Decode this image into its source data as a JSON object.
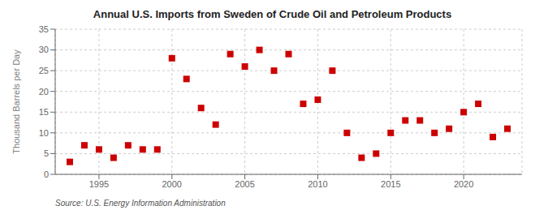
{
  "chart_data": {
    "type": "scatter",
    "title": "Annual U.S. Imports from Sweden of Crude Oil and Petroleum Products",
    "ylabel": "Thousand Barrels per Day",
    "annotation": "Source: U.S. Energy Information Administration",
    "x": [
      1993,
      1994,
      1995,
      1996,
      1997,
      1998,
      1999,
      2000,
      2001,
      2002,
      2003,
      2004,
      2005,
      2006,
      2007,
      2008,
      2009,
      2010,
      2011,
      2012,
      2013,
      2014,
      2015,
      2016,
      2017,
      2018,
      2019,
      2020,
      2021,
      2022,
      2023
    ],
    "values": [
      3,
      7,
      6,
      4,
      7,
      6,
      6,
      28,
      23,
      16,
      12,
      29,
      26,
      30,
      25,
      29,
      17,
      18,
      25,
      10,
      4,
      5,
      10,
      13,
      13,
      10,
      11,
      15,
      17,
      9,
      11
    ],
    "color": "#cc0000",
    "marker": "square",
    "xlim": [
      1992,
      2024
    ],
    "xticks": [
      1995,
      2000,
      2005,
      2010,
      2015,
      2020
    ],
    "ylim": [
      0,
      35
    ],
    "yticks": [
      0,
      5,
      10,
      15,
      20,
      25,
      30,
      35
    ],
    "grid": true
  }
}
